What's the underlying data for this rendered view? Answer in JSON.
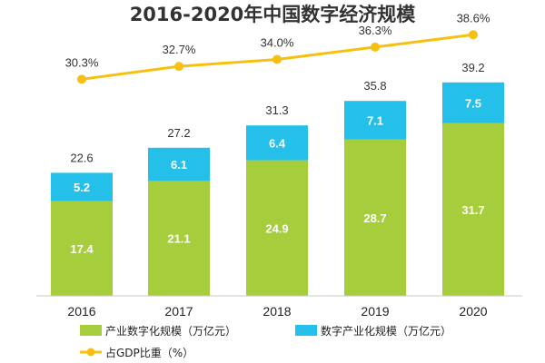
{
  "chart_data": {
    "type": "bar",
    "stacked": true,
    "title": "2016-2020年中国数字经济规模",
    "categories": [
      "2016",
      "2017",
      "2018",
      "2019",
      "2020"
    ],
    "series": [
      {
        "name": "产业数字化规模（万亿元）",
        "values": [
          17.4,
          21.1,
          24.9,
          28.7,
          31.7
        ],
        "color": "#a6cd3c"
      },
      {
        "name": "数字产业化规模（万亿元）",
        "values": [
          5.2,
          6.1,
          6.4,
          7.1,
          7.5
        ],
        "color": "#25c0e9"
      }
    ],
    "totals": [
      22.6,
      27.2,
      31.3,
      35.8,
      39.2
    ],
    "line_series": {
      "name": "占GDP比重（%）",
      "values": [
        30.3,
        32.7,
        34.0,
        36.3,
        38.6
      ],
      "labels": [
        "30.3%",
        "32.7%",
        "34.0%",
        "36.3%",
        "38.6%"
      ],
      "color": "#f7c011"
    },
    "ylim": [
      0,
      48
    ],
    "line_ylim": [
      18,
      40
    ],
    "xlabel": "",
    "ylabel": "",
    "legend_position": "bottom"
  }
}
